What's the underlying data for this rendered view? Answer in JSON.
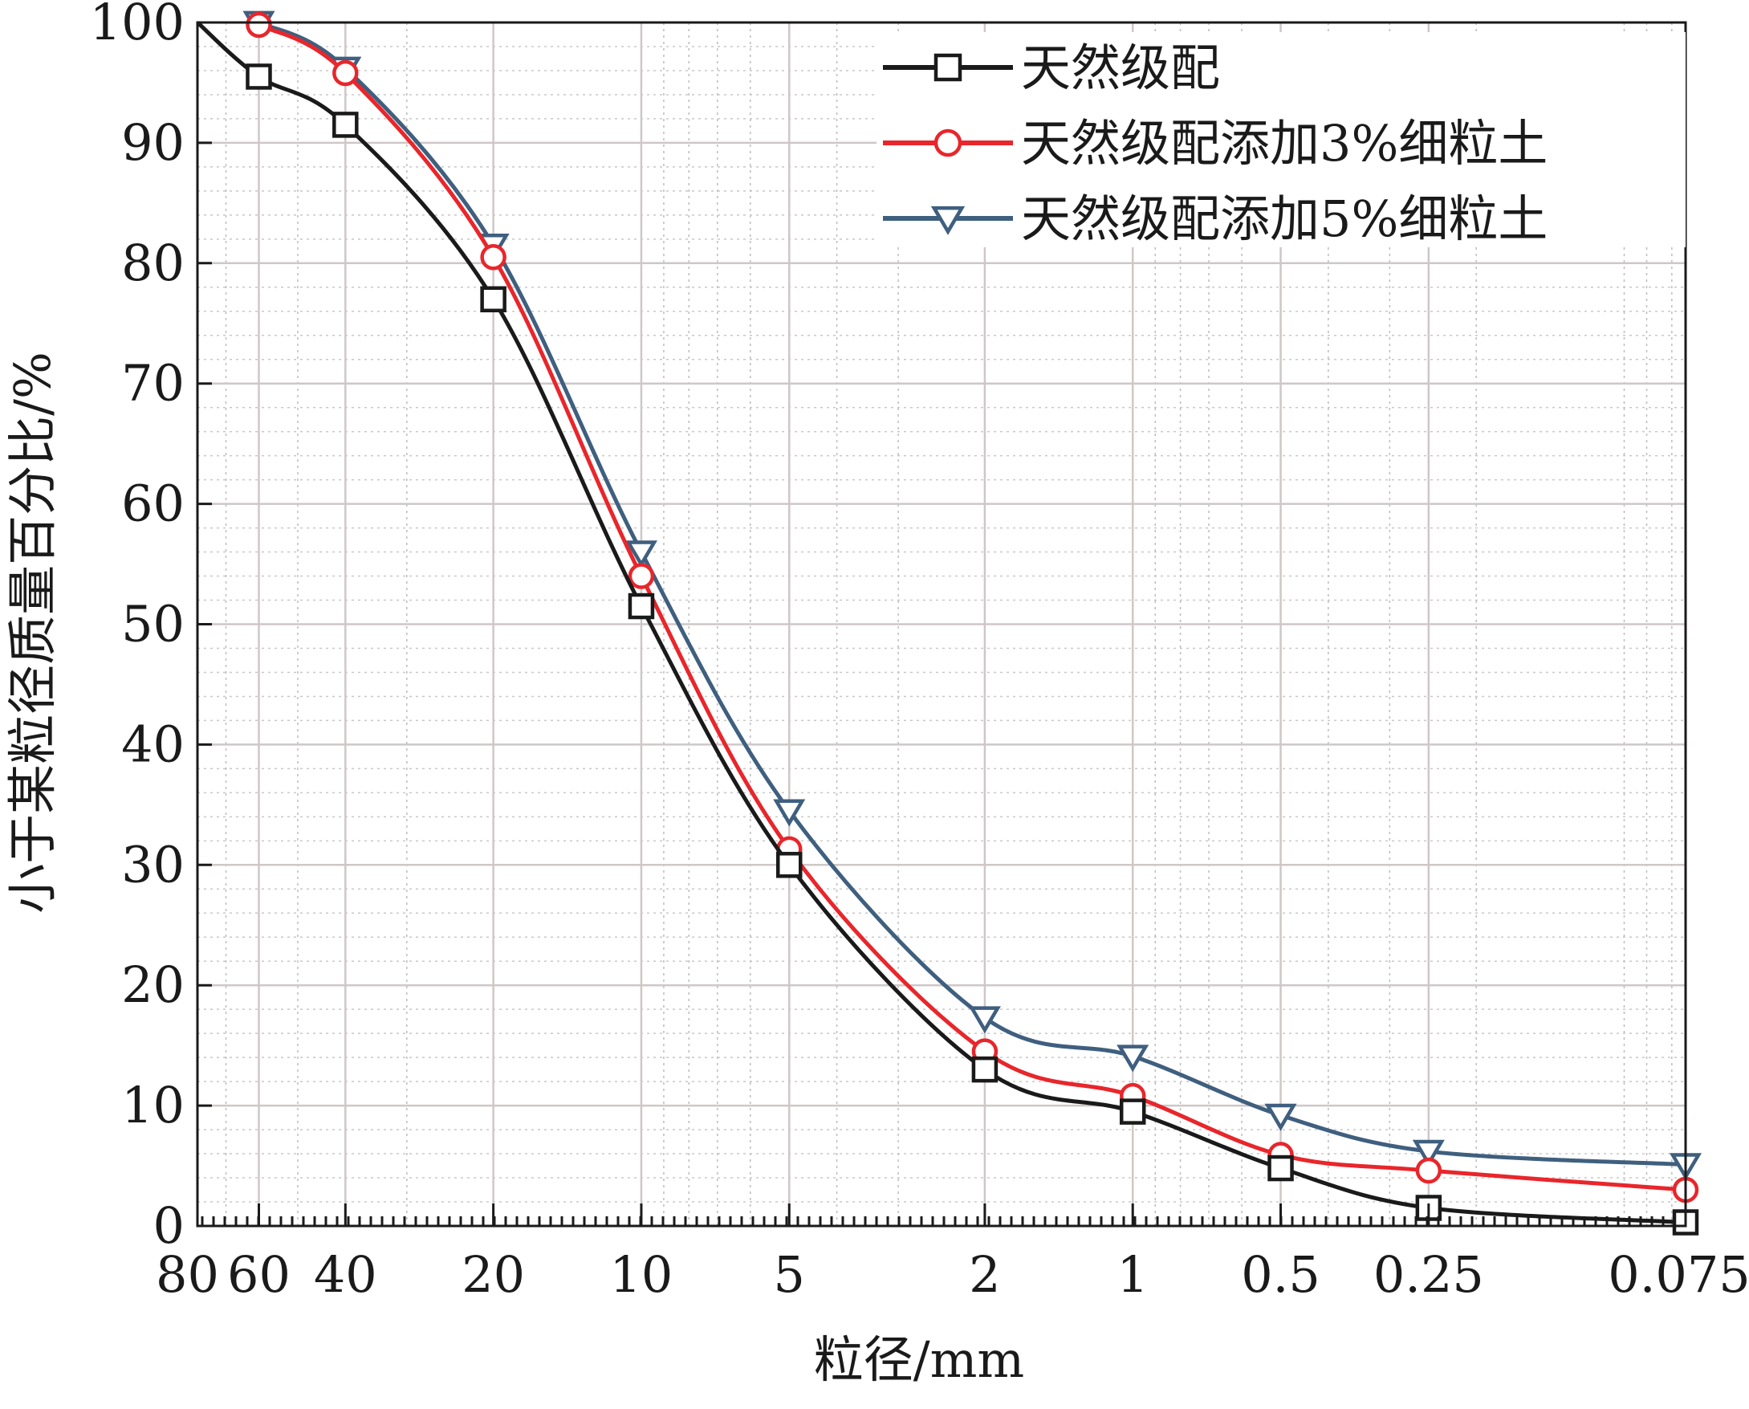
{
  "chart_data": {
    "type": "line",
    "title": "",
    "xlabel": "粒径/mm",
    "ylabel": "小于某粒径质量百分比/%",
    "x_scale": "log",
    "x_reversed": true,
    "xlim": [
      80,
      0.075
    ],
    "ylim": [
      0,
      100
    ],
    "x_ticks": [
      80,
      60,
      40,
      20,
      10,
      5,
      2,
      1,
      0.5,
      0.25,
      0.075
    ],
    "x_tick_labels": [
      "80",
      "60",
      "40",
      "20",
      "10",
      "5",
      "2",
      "1",
      "0.5",
      "0.25",
      "0.075"
    ],
    "y_ticks": [
      0,
      10,
      20,
      30,
      40,
      50,
      60,
      70,
      80,
      90,
      100
    ],
    "y_tick_labels": [
      "0",
      "10",
      "20",
      "30",
      "40",
      "50",
      "60",
      "70",
      "80",
      "90",
      "100"
    ],
    "grid": true,
    "legend_position": "top-right",
    "x": [
      60,
      40,
      20,
      10,
      5,
      2,
      1,
      0.5,
      0.25,
      0.075
    ],
    "series": [
      {
        "name": "天然级配",
        "color": "#1a1a1a",
        "marker": "square",
        "values": [
          95.5,
          91.5,
          77,
          51.5,
          30,
          13,
          9.5,
          4.8,
          1.5,
          0.3
        ]
      },
      {
        "name": "天然级配添加3%细粒土",
        "color": "#e8262b",
        "marker": "circle",
        "values": [
          99.8,
          95.8,
          80.5,
          54,
          31.3,
          14.5,
          10.8,
          5.9,
          4.6,
          3.0
        ]
      },
      {
        "name": "天然级配添加5%细粒土",
        "color": "#3f5f7f",
        "marker": "triangle-down",
        "values": [
          100,
          96.2,
          81.5,
          56,
          34.5,
          17.3,
          14.1,
          9.2,
          6.2,
          5.1
        ]
      }
    ]
  }
}
